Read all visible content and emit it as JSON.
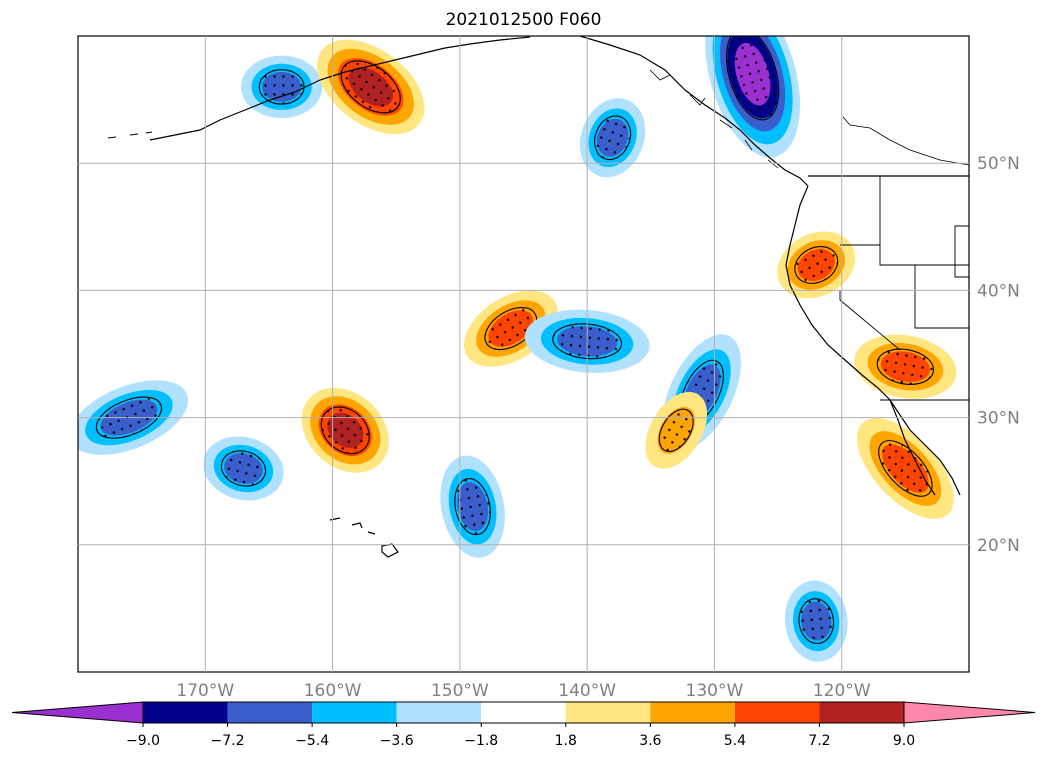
{
  "title": "2021012500 F060",
  "chart_data": {
    "type": "heatmap",
    "title": "2021012500 F060",
    "projection": "geographic map, North Pacific",
    "lon_range": [
      -180,
      -110
    ],
    "lat_range": [
      10,
      60
    ],
    "lat_ticks": [
      {
        "value": 50,
        "label": "50°N"
      },
      {
        "value": 40,
        "label": "40°N"
      },
      {
        "value": 30,
        "label": "30°N"
      },
      {
        "value": 20,
        "label": "20°N"
      }
    ],
    "lon_ticks": [
      {
        "value": -170,
        "label": "170°W"
      },
      {
        "value": -160,
        "label": "160°W"
      },
      {
        "value": -150,
        "label": "150°W"
      },
      {
        "value": -140,
        "label": "140°W"
      },
      {
        "value": -130,
        "label": "130°W"
      },
      {
        "value": -120,
        "label": "120°W"
      }
    ],
    "grid": true,
    "colorbar": {
      "extend": "both",
      "boundaries": [
        -9.0,
        -7.2,
        -5.4,
        -3.6,
        -1.8,
        1.8,
        3.6,
        5.4,
        7.2,
        9.0
      ],
      "tick_labels": [
        "−9.0",
        "−7.2",
        "−5.4",
        "−3.6",
        "−1.8",
        "1.8",
        "3.6",
        "5.4",
        "7.2",
        "9.0"
      ],
      "colors": [
        "#9b30d0",
        "#00008b",
        "#3a5fcd",
        "#00bfff",
        "#b0e2ff",
        "#ffffff",
        "#ffe680",
        "#ffa500",
        "#ff4500",
        "#b22222",
        "#ff88aa"
      ]
    },
    "features": [
      {
        "lon": -164,
        "lat": 56,
        "level": -5.4
      },
      {
        "lon": -157,
        "lat": 56,
        "level": 7.2
      },
      {
        "lon": -127,
        "lat": 57,
        "level": -9.0
      },
      {
        "lon": -138,
        "lat": 52,
        "level": -5.4
      },
      {
        "lon": -146,
        "lat": 37,
        "level": 5.4
      },
      {
        "lon": -140,
        "lat": 36,
        "level": -5.4
      },
      {
        "lon": -159,
        "lat": 29,
        "level": 7.2
      },
      {
        "lon": -149,
        "lat": 23,
        "level": -5.4
      },
      {
        "lon": -131,
        "lat": 32,
        "level": -5.4
      },
      {
        "lon": -122,
        "lat": 42,
        "level": 5.4
      },
      {
        "lon": -115,
        "lat": 34,
        "level": 5.4
      },
      {
        "lon": -115,
        "lat": 26,
        "level": 5.4
      },
      {
        "lon": -122,
        "lat": 14,
        "level": -5.4
      },
      {
        "lon": -133,
        "lat": 29,
        "level": 3.6
      },
      {
        "lon": -176,
        "lat": 30,
        "level": -5.4
      },
      {
        "lon": -167,
        "lat": 26,
        "level": -5.4
      }
    ]
  }
}
